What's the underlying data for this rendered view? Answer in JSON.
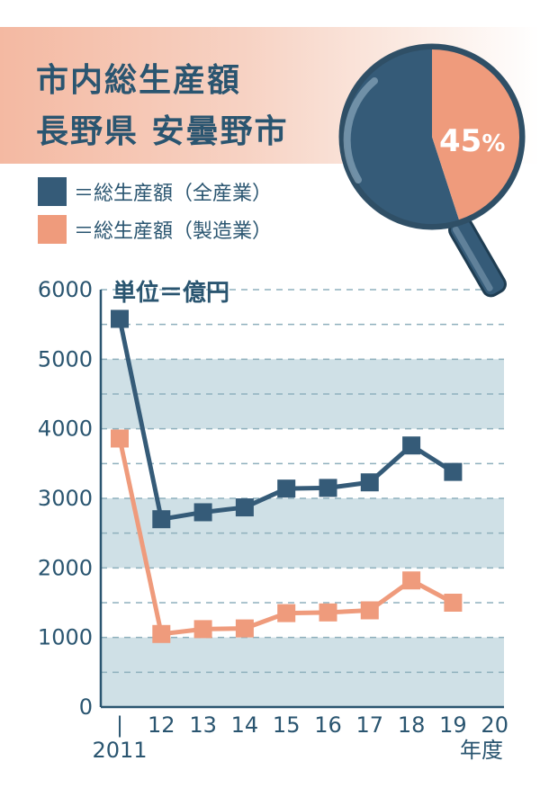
{
  "title": {
    "line1": "市内総生産額",
    "line2": "長野県 安曇野市"
  },
  "legend": [
    {
      "label": "＝総生産額（全産業）",
      "color": "#355b78"
    },
    {
      "label": "＝総生産額（製造業）",
      "color": "#ef9b7c"
    }
  ],
  "magnifier": {
    "percent_value": 45,
    "percent_number": "45",
    "percent_sign": "%"
  },
  "colors": {
    "band": "#cfe0e6",
    "grid": "#8fb0bd",
    "axis": "#2a5570"
  },
  "chart_data": {
    "type": "line",
    "title": "市内総生産額",
    "unit_label": "単位＝億円",
    "xlabel": "年度",
    "ylabel": "",
    "ylim": [
      0,
      6000
    ],
    "y_ticks": [
      "0",
      "1000",
      "2000",
      "3000",
      "4000",
      "5000",
      "6000"
    ],
    "x_ticks": [
      "|",
      "12",
      "13",
      "14",
      "15",
      "16",
      "17",
      "18",
      "19",
      "20"
    ],
    "x_first_label": "2011",
    "categories": [
      "2011",
      "12",
      "13",
      "14",
      "15",
      "16",
      "17",
      "18",
      "19",
      "20"
    ],
    "series": [
      {
        "name": "総生産額（全産業）",
        "color": "#355b78",
        "values": [
          5580,
          2700,
          2800,
          2870,
          3140,
          3150,
          3230,
          3760,
          3380,
          null
        ]
      },
      {
        "name": "総生産額（製造業）",
        "color": "#ef9b7c",
        "values": [
          3860,
          1050,
          1120,
          1130,
          1350,
          1360,
          1390,
          1820,
          1500,
          null
        ]
      }
    ],
    "grid": true,
    "legend_position": "top-left"
  }
}
